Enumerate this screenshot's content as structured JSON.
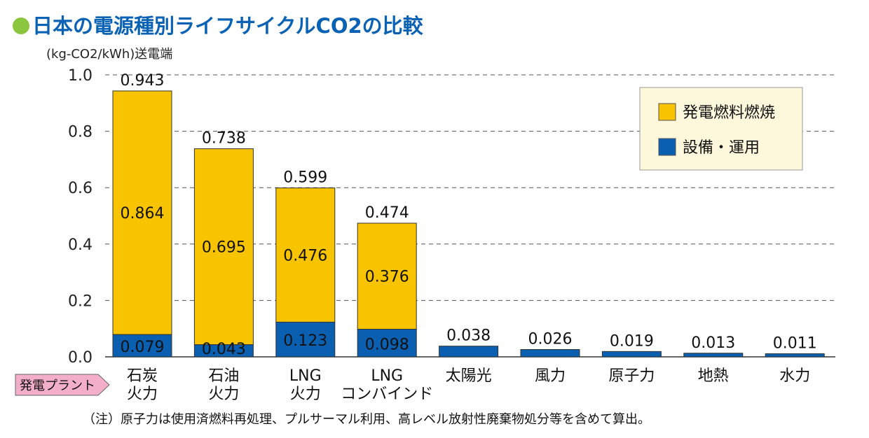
{
  "chart_data": {
    "type": "bar",
    "stacked": true,
    "title": "日本の電源種別ライフサイクルCO2の比較",
    "ylabel": "(kg-CO2/kWh)送電端",
    "ylim": [
      0,
      1.0
    ],
    "yticks": [
      "0.0",
      "0.2",
      "0.4",
      "0.6",
      "0.8",
      "1.0"
    ],
    "grid": true,
    "legend_position": "top-right",
    "xaxis_tag": "発電プラント",
    "categories": [
      [
        "石炭",
        "火力"
      ],
      [
        "石油",
        "火力"
      ],
      [
        "LNG",
        "火力"
      ],
      [
        "LNG",
        "コンバインド"
      ],
      [
        "太陽光"
      ],
      [
        "風力"
      ],
      [
        "原子力"
      ],
      [
        "地熱"
      ],
      [
        "水力"
      ]
    ],
    "series": [
      {
        "name": "設備・運用",
        "color": "#0a5fb0",
        "values": [
          0.079,
          0.043,
          0.123,
          0.098,
          0.038,
          0.026,
          0.019,
          0.013,
          0.011
        ]
      },
      {
        "name": "発電燃料燃焼",
        "color": "#f8c400",
        "values": [
          0.864,
          0.695,
          0.476,
          0.376,
          0,
          0,
          0,
          0,
          0
        ]
      }
    ],
    "totals": [
      "0.943",
      "0.738",
      "0.599",
      "0.474",
      "0.038",
      "0.026",
      "0.019",
      "0.013",
      "0.011"
    ],
    "segment_labels_fuel": [
      "0.864",
      "0.695",
      "0.476",
      "0.376"
    ],
    "segment_labels_ops": [
      "0.079",
      "0.043",
      "0.123",
      "0.098"
    ],
    "note": "（注）原子力は使用済燃料再処理、プルサーマル利用、高レベル放射性廃棄物処分等を含めて算出。",
    "title_bullet_color": "#8cc63f"
  }
}
